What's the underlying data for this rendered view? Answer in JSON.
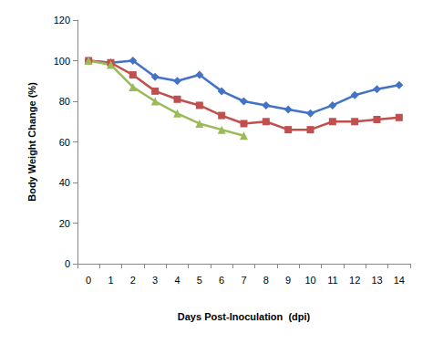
{
  "chart_data": {
    "type": "line",
    "x_label": "Days Post-Inoculation  (dpi)",
    "y_label": "Body Weight Change (%)",
    "categories": [
      "0",
      "1",
      "2",
      "3",
      "4",
      "5",
      "6",
      "7",
      "8",
      "9",
      "10",
      "11",
      "12",
      "13",
      "14"
    ],
    "series": [
      {
        "color": "#4472c4",
        "marker": "diamond",
        "values": [
          100,
          99,
          100,
          92,
          90,
          93,
          85,
          80,
          78,
          76,
          74,
          78,
          83,
          86,
          88
        ]
      },
      {
        "color": "#c0504d",
        "marker": "square",
        "values": [
          100,
          99,
          93,
          85,
          81,
          78,
          73,
          69,
          70,
          66,
          66,
          70,
          70,
          71,
          72
        ]
      },
      {
        "color": "#9bbb59",
        "marker": "triangle",
        "values": [
          100,
          98,
          87,
          80,
          74,
          69,
          66,
          63,
          null,
          null,
          null,
          null,
          null,
          null,
          null
        ]
      }
    ],
    "ylim": [
      0,
      120
    ],
    "yticks": [
      0,
      20,
      40,
      60,
      80,
      100,
      120
    ],
    "grid": false
  }
}
